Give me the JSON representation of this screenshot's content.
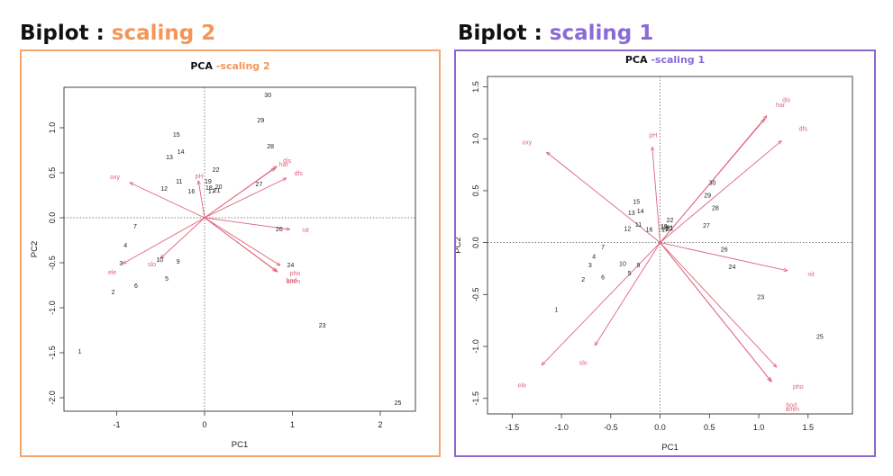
{
  "headings": [
    {
      "prefix": "Biplot : ",
      "accent": "scaling 2",
      "accent_color": "#f3965a"
    },
    {
      "prefix": "Biplot : ",
      "accent": "scaling 1",
      "accent_color": "#8a6bd6"
    }
  ],
  "chart_data": [
    {
      "type": "scatter",
      "subtype": "biplot",
      "title": "PCA",
      "subtitle": "-scaling 2",
      "xlabel": "PC1",
      "ylabel": "PC2",
      "xlim": [
        -1.6,
        2.4
      ],
      "ylim": [
        -2.15,
        1.45
      ],
      "xticks": [
        -1,
        0,
        1,
        2
      ],
      "yticks": [
        -2.0,
        -1.5,
        -1.0,
        -0.5,
        0.0,
        0.5,
        1.0
      ],
      "xtick_labels": [
        "-1",
        "0",
        "1",
        "2"
      ],
      "ytick_labels": [
        "-2.0",
        "-1.5",
        "-1.0",
        "-0.5",
        "0.0",
        "0.5",
        "1.0"
      ],
      "sites": [
        {
          "label": "1",
          "x": -1.42,
          "y": -1.48
        },
        {
          "label": "2",
          "x": -1.04,
          "y": -0.82
        },
        {
          "label": "3",
          "x": -0.95,
          "y": -0.5
        },
        {
          "label": "4",
          "x": -0.9,
          "y": -0.3
        },
        {
          "label": "5",
          "x": -0.43,
          "y": -0.67
        },
        {
          "label": "6",
          "x": -0.78,
          "y": -0.75
        },
        {
          "label": "7",
          "x": -0.79,
          "y": -0.09
        },
        {
          "label": "9",
          "x": -0.3,
          "y": -0.48
        },
        {
          "label": "10",
          "x": -0.51,
          "y": -0.46
        },
        {
          "label": "11",
          "x": -0.29,
          "y": 0.41
        },
        {
          "label": "12",
          "x": -0.46,
          "y": 0.33
        },
        {
          "label": "13",
          "x": -0.4,
          "y": 0.68
        },
        {
          "label": "14",
          "x": -0.27,
          "y": 0.74
        },
        {
          "label": "15",
          "x": -0.32,
          "y": 0.93
        },
        {
          "label": "16",
          "x": -0.15,
          "y": 0.3
        },
        {
          "label": "17",
          "x": 0.08,
          "y": 0.3
        },
        {
          "label": "18",
          "x": 0.05,
          "y": 0.34
        },
        {
          "label": "19",
          "x": 0.04,
          "y": 0.41
        },
        {
          "label": "20",
          "x": 0.16,
          "y": 0.35
        },
        {
          "label": "21",
          "x": 0.14,
          "y": 0.31
        },
        {
          "label": "22",
          "x": 0.13,
          "y": 0.54
        },
        {
          "label": "23",
          "x": 1.34,
          "y": -1.19
        },
        {
          "label": "24",
          "x": 0.98,
          "y": -0.52
        },
        {
          "label": "25",
          "x": 2.2,
          "y": -2.05
        },
        {
          "label": "26",
          "x": 0.85,
          "y": -0.12
        },
        {
          "label": "27",
          "x": 0.62,
          "y": 0.38
        },
        {
          "label": "28",
          "x": 0.75,
          "y": 0.8
        },
        {
          "label": "29",
          "x": 0.64,
          "y": 1.09
        },
        {
          "label": "30",
          "x": 0.72,
          "y": 1.37
        }
      ],
      "species": [
        {
          "label": "dfs",
          "x": 0.93,
          "y": 0.44,
          "lx": 1.07,
          "ly": 0.5
        },
        {
          "label": "har",
          "x": 0.8,
          "y": 0.55,
          "lx": 0.9,
          "ly": 0.6
        },
        {
          "label": "dis",
          "x": 0.82,
          "y": 0.57,
          "lx": 0.94,
          "ly": 0.64
        },
        {
          "label": "oxy",
          "x": -0.85,
          "y": 0.39,
          "lx": -1.02,
          "ly": 0.46
        },
        {
          "label": "pH",
          "x": -0.07,
          "y": 0.41,
          "lx": -0.06,
          "ly": 0.47
        },
        {
          "label": "nit",
          "x": 0.97,
          "y": -0.13,
          "lx": 1.15,
          "ly": -0.13
        },
        {
          "label": "ele",
          "x": -0.93,
          "y": -0.51,
          "lx": -1.05,
          "ly": -0.6
        },
        {
          "label": "slo",
          "x": -0.5,
          "y": -0.45,
          "lx": -0.6,
          "ly": -0.51
        },
        {
          "label": "pho",
          "x": 0.86,
          "y": -0.53,
          "lx": 1.03,
          "ly": -0.61
        },
        {
          "label": "bod",
          "x": 0.81,
          "y": -0.59,
          "lx": 0.99,
          "ly": -0.69
        },
        {
          "label": "amm",
          "x": 0.83,
          "y": -0.6,
          "lx": 1.01,
          "ly": -0.7
        }
      ]
    },
    {
      "type": "scatter",
      "subtype": "biplot",
      "title": "PCA",
      "subtitle": "-scaling 1",
      "xlabel": "PC1",
      "ylabel": "PC2",
      "xlim": [
        -1.75,
        1.95
      ],
      "ylim": [
        -1.65,
        1.6
      ],
      "xticks": [
        -1.5,
        -1.0,
        -0.5,
        0.0,
        0.5,
        1.0,
        1.5
      ],
      "yticks": [
        -1.5,
        -1.0,
        -0.5,
        0.0,
        0.5,
        1.0,
        1.5
      ],
      "xtick_labels": [
        "-1.5",
        "-1.0",
        "-0.5",
        "0.0",
        "0.5",
        "1.0",
        "1.5"
      ],
      "ytick_labels": [
        "-1.5",
        "-1.0",
        "-0.5",
        "0.0",
        "0.5",
        "1.0",
        "1.5"
      ],
      "sites": [
        {
          "label": "1",
          "x": -1.05,
          "y": -0.64
        },
        {
          "label": "2",
          "x": -0.78,
          "y": -0.35
        },
        {
          "label": "3",
          "x": -0.71,
          "y": -0.21
        },
        {
          "label": "4",
          "x": -0.67,
          "y": -0.13
        },
        {
          "label": "5",
          "x": -0.31,
          "y": -0.29
        },
        {
          "label": "6",
          "x": -0.58,
          "y": -0.33
        },
        {
          "label": "7",
          "x": -0.58,
          "y": -0.04
        },
        {
          "label": "9",
          "x": -0.22,
          "y": -0.21
        },
        {
          "label": "10",
          "x": -0.38,
          "y": -0.2
        },
        {
          "label": "11",
          "x": -0.22,
          "y": 0.18
        },
        {
          "label": "12",
          "x": -0.33,
          "y": 0.14
        },
        {
          "label": "13",
          "x": -0.29,
          "y": 0.29
        },
        {
          "label": "14",
          "x": -0.2,
          "y": 0.31
        },
        {
          "label": "15",
          "x": -0.24,
          "y": 0.4
        },
        {
          "label": "16",
          "x": -0.11,
          "y": 0.13
        },
        {
          "label": "17",
          "x": 0.05,
          "y": 0.13
        },
        {
          "label": "18",
          "x": 0.04,
          "y": 0.15
        },
        {
          "label": "19",
          "x": 0.04,
          "y": 0.16
        },
        {
          "label": "20",
          "x": 0.09,
          "y": 0.14
        },
        {
          "label": "21",
          "x": 0.1,
          "y": 0.15
        },
        {
          "label": "22",
          "x": 0.1,
          "y": 0.22
        },
        {
          "label": "23",
          "x": 1.02,
          "y": -0.52
        },
        {
          "label": "24",
          "x": 0.73,
          "y": -0.23
        },
        {
          "label": "25",
          "x": 1.62,
          "y": -0.9
        },
        {
          "label": "26",
          "x": 0.65,
          "y": -0.06
        },
        {
          "label": "27",
          "x": 0.47,
          "y": 0.17
        },
        {
          "label": "28",
          "x": 0.56,
          "y": 0.34
        },
        {
          "label": "29",
          "x": 0.48,
          "y": 0.46
        },
        {
          "label": "30",
          "x": 0.53,
          "y": 0.58
        }
      ],
      "species": [
        {
          "label": "dis",
          "x": 1.08,
          "y": 1.22,
          "lx": 1.28,
          "ly": 1.38
        },
        {
          "label": "har",
          "x": 1.06,
          "y": 1.19,
          "lx": 1.22,
          "ly": 1.33
        },
        {
          "label": "dfs",
          "x": 1.23,
          "y": 0.98,
          "lx": 1.45,
          "ly": 1.1
        },
        {
          "label": "oxy",
          "x": -1.15,
          "y": 0.87,
          "lx": -1.35,
          "ly": 0.97
        },
        {
          "label": "pH",
          "x": -0.08,
          "y": 0.92,
          "lx": -0.07,
          "ly": 1.04
        },
        {
          "label": "nit",
          "x": 1.29,
          "y": -0.27,
          "lx": 1.53,
          "ly": -0.3
        },
        {
          "label": "ele",
          "x": -1.2,
          "y": -1.18,
          "lx": -1.4,
          "ly": -1.37
        },
        {
          "label": "slo",
          "x": -0.66,
          "y": -0.99,
          "lx": -0.78,
          "ly": -1.15
        },
        {
          "label": "pho",
          "x": 1.18,
          "y": -1.2,
          "lx": 1.4,
          "ly": -1.38
        },
        {
          "label": "bod",
          "x": 1.12,
          "y": -1.33,
          "lx": 1.33,
          "ly": -1.56
        },
        {
          "label": "amm",
          "x": 1.13,
          "y": -1.34,
          "lx": 1.34,
          "ly": -1.6
        }
      ]
    }
  ]
}
